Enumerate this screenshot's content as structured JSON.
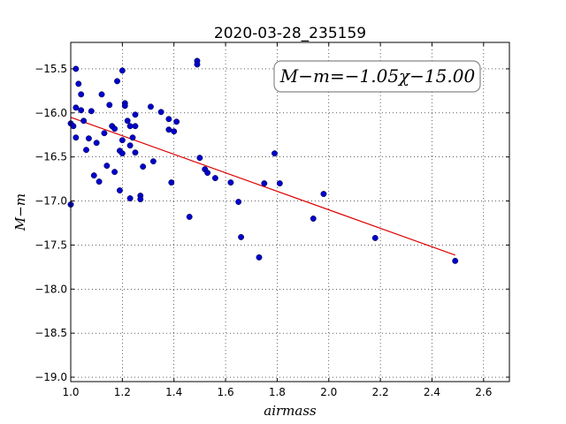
{
  "chart_data": {
    "type": "scatter",
    "title": "2020-03-28_235159",
    "xlabel": "airmass",
    "ylabel": "M−m",
    "xlim": [
      1.0,
      2.7
    ],
    "ylim": [
      -19.05,
      -15.2
    ],
    "xticks": [
      1.0,
      1.2,
      1.4,
      1.6,
      1.8,
      2.0,
      2.2,
      2.4,
      2.6
    ],
    "xtick_labels": [
      "1.0",
      "1.2",
      "1.4",
      "1.6",
      "1.8",
      "2.0",
      "2.2",
      "2.4",
      "2.6"
    ],
    "yticks": [
      -15.5,
      -16.0,
      -16.5,
      -17.0,
      -17.5,
      -18.0,
      -18.5,
      -19.0
    ],
    "ytick_labels": [
      "−15.5",
      "−16.0",
      "−16.5",
      "−17.0",
      "−17.5",
      "−18.0",
      "−18.5",
      "−19.0"
    ],
    "grid": true,
    "annotation": "M−m=−1.05χ−15.00",
    "fit": {
      "slope": -1.05,
      "intercept": -15.0,
      "x_range": [
        1.0,
        2.49
      ],
      "color": "#dd0000"
    },
    "point_color": "#0000cc",
    "points": [
      [
        1.0,
        -17.04
      ],
      [
        1.0,
        -16.12
      ],
      [
        1.01,
        -16.15
      ],
      [
        1.02,
        -15.94
      ],
      [
        1.02,
        -16.28
      ],
      [
        1.02,
        -15.5
      ],
      [
        1.03,
        -15.67
      ],
      [
        1.04,
        -15.79
      ],
      [
        1.04,
        -15.97
      ],
      [
        1.05,
        -16.09
      ],
      [
        1.06,
        -16.42
      ],
      [
        1.07,
        -16.29
      ],
      [
        1.08,
        -15.98
      ],
      [
        1.09,
        -16.71
      ],
      [
        1.1,
        -16.34
      ],
      [
        1.11,
        -16.78
      ],
      [
        1.12,
        -15.79
      ],
      [
        1.13,
        -16.23
      ],
      [
        1.14,
        -16.6
      ],
      [
        1.15,
        -15.91
      ],
      [
        1.16,
        -16.15
      ],
      [
        1.17,
        -16.18
      ],
      [
        1.17,
        -16.67
      ],
      [
        1.18,
        -15.64
      ],
      [
        1.19,
        -16.88
      ],
      [
        1.19,
        -16.43
      ],
      [
        1.2,
        -16.46
      ],
      [
        1.2,
        -16.31
      ],
      [
        1.21,
        -15.89
      ],
      [
        1.21,
        -15.92
      ],
      [
        1.2,
        -15.52
      ],
      [
        1.22,
        -16.09
      ],
      [
        1.23,
        -16.15
      ],
      [
        1.23,
        -16.37
      ],
      [
        1.24,
        -16.28
      ],
      [
        1.23,
        -16.97
      ],
      [
        1.25,
        -16.02
      ],
      [
        1.25,
        -16.15
      ],
      [
        1.25,
        -16.45
      ],
      [
        1.27,
        -16.94
      ],
      [
        1.27,
        -16.98
      ],
      [
        1.28,
        -16.61
      ],
      [
        1.31,
        -15.93
      ],
      [
        1.32,
        -16.55
      ],
      [
        1.35,
        -15.99
      ],
      [
        1.38,
        -16.07
      ],
      [
        1.38,
        -16.19
      ],
      [
        1.39,
        -16.79
      ],
      [
        1.4,
        -16.21
      ],
      [
        1.41,
        -16.1
      ],
      [
        1.46,
        -17.18
      ],
      [
        1.49,
        -15.41
      ],
      [
        1.49,
        -15.45
      ],
      [
        1.5,
        -16.51
      ],
      [
        1.52,
        -16.64
      ],
      [
        1.53,
        -16.68
      ],
      [
        1.56,
        -16.74
      ],
      [
        1.62,
        -16.79
      ],
      [
        1.65,
        -17.01
      ],
      [
        1.66,
        -17.41
      ],
      [
        1.73,
        -17.64
      ],
      [
        1.75,
        -16.8
      ],
      [
        1.79,
        -16.46
      ],
      [
        1.81,
        -16.8
      ],
      [
        1.94,
        -17.2
      ],
      [
        1.98,
        -16.92
      ],
      [
        2.18,
        -17.42
      ],
      [
        2.49,
        -17.68
      ]
    ]
  }
}
